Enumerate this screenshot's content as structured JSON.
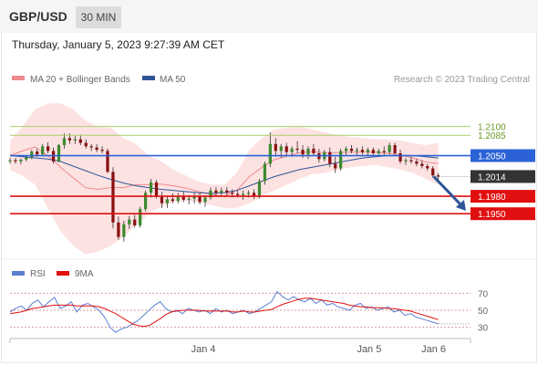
{
  "header": {
    "symbol": "GBP/USD",
    "timeframe": "30 MIN",
    "timestamp": "Thursday, January 5, 2023 9:27:39 AM CET"
  },
  "chart_data": {
    "type": "candlestick",
    "legend": [
      {
        "label": "MA 20 + Bollinger Bands",
        "color": "#f08a8a"
      },
      {
        "label": "MA 50",
        "color": "#2f5597"
      }
    ],
    "copyright": "Research © 2023 Trading Central",
    "y_range": [
      1.1875,
      1.2145
    ],
    "x_range": [
      0,
      100
    ],
    "x_ticks": [
      {
        "label": "Jan 4",
        "x": 42
      },
      {
        "label": "Jan 5",
        "x": 78
      },
      {
        "label": "Jan 6",
        "x": 92
      }
    ],
    "levels": [
      {
        "value": 1.21,
        "label": "1.2100",
        "type": "resistance-line",
        "color": "#a9cf6b"
      },
      {
        "value": 1.2085,
        "label": "1.2085",
        "type": "resistance-line",
        "color": "#a9cf6b"
      },
      {
        "value": 1.205,
        "label": "1.2050",
        "type": "pivot",
        "color": "#2b63d6"
      },
      {
        "value": 1.198,
        "label": "1.1980",
        "type": "support",
        "color": "#e01010"
      },
      {
        "value": 1.195,
        "label": "1.1950",
        "type": "support",
        "color": "#e01010"
      }
    ],
    "last_price": {
      "value": 1.2014,
      "label": "1.2014",
      "color": "#333333"
    },
    "forecast_arrow": {
      "from": [
        92,
        1.2014
      ],
      "to": [
        99,
        1.1955
      ],
      "color": "#2f5597"
    },
    "candles": [
      [
        1.204,
        1.2046,
        1.2036,
        1.2042
      ],
      [
        1.2042,
        1.2046,
        1.2036,
        1.204
      ],
      [
        1.204,
        1.2045,
        1.2035,
        1.2043
      ],
      [
        1.2043,
        1.205,
        1.204,
        1.2047
      ],
      [
        1.2047,
        1.206,
        1.2044,
        1.2057
      ],
      [
        1.2057,
        1.2062,
        1.2048,
        1.2052
      ],
      [
        1.2052,
        1.207,
        1.205,
        1.2066
      ],
      [
        1.2066,
        1.2073,
        1.2054,
        1.2058
      ],
      [
        1.2058,
        1.2064,
        1.2036,
        1.204
      ],
      [
        1.204,
        1.207,
        1.2038,
        1.2068
      ],
      [
        1.2068,
        1.2088,
        1.2062,
        1.208
      ],
      [
        1.208,
        1.2088,
        1.207,
        1.2076
      ],
      [
        1.2076,
        1.2084,
        1.207,
        1.2078
      ],
      [
        1.2078,
        1.2086,
        1.2068,
        1.2072
      ],
      [
        1.2072,
        1.2078,
        1.2062,
        1.2066
      ],
      [
        1.2066,
        1.207,
        1.2058,
        1.2064
      ],
      [
        1.2064,
        1.207,
        1.2056,
        1.206
      ],
      [
        1.206,
        1.2066,
        1.2054,
        1.2058
      ],
      [
        1.2058,
        1.2062,
        1.202,
        1.2022
      ],
      [
        1.2022,
        1.203,
        1.1925,
        1.1935
      ],
      [
        1.1935,
        1.1945,
        1.1905,
        1.191
      ],
      [
        1.191,
        1.1938,
        1.1902,
        1.1932
      ],
      [
        1.1932,
        1.1946,
        1.1924,
        1.194
      ],
      [
        1.194,
        1.1948,
        1.1926,
        1.193
      ],
      [
        1.193,
        1.1962,
        1.1926,
        1.1958
      ],
      [
        1.1958,
        1.199,
        1.1954,
        1.1986
      ],
      [
        1.1986,
        1.201,
        1.1978,
        1.2004
      ],
      [
        1.2004,
        1.2008,
        1.1976,
        1.198
      ],
      [
        1.198,
        1.1988,
        1.196,
        1.1968
      ],
      [
        1.1968,
        1.198,
        1.196,
        1.1975
      ],
      [
        1.1975,
        1.1985,
        1.1968,
        1.1972
      ],
      [
        1.1972,
        1.1986,
        1.1968,
        1.198
      ],
      [
        1.198,
        1.1988,
        1.197,
        1.1974
      ],
      [
        1.1974,
        1.1982,
        1.1966,
        1.1976
      ],
      [
        1.1976,
        1.1986,
        1.1968,
        1.198
      ],
      [
        1.198,
        1.1986,
        1.1966,
        1.197
      ],
      [
        1.197,
        1.1982,
        1.1962,
        1.1978
      ],
      [
        1.1978,
        1.1995,
        1.1974,
        1.199
      ],
      [
        1.199,
        1.1996,
        1.198,
        1.1986
      ],
      [
        1.1986,
        1.1995,
        1.198,
        1.199
      ],
      [
        1.199,
        1.1996,
        1.1982,
        1.1986
      ],
      [
        1.1986,
        1.1992,
        1.1978,
        1.1984
      ],
      [
        1.1984,
        1.199,
        1.1978,
        1.1982
      ],
      [
        1.1982,
        1.199,
        1.1974,
        1.1984
      ],
      [
        1.1984,
        1.199,
        1.1978,
        1.1986
      ],
      [
        1.1986,
        1.1992,
        1.1975,
        1.198
      ],
      [
        1.198,
        1.201,
        1.1976,
        1.2006
      ],
      [
        1.2006,
        1.204,
        1.2,
        1.2036
      ],
      [
        1.2036,
        1.209,
        1.203,
        1.207
      ],
      [
        1.207,
        1.208,
        1.2048,
        1.2058
      ],
      [
        1.2058,
        1.207,
        1.2046,
        1.2066
      ],
      [
        1.2066,
        1.2072,
        1.205,
        1.2056
      ],
      [
        1.2056,
        1.2066,
        1.2048,
        1.2062
      ],
      [
        1.2062,
        1.2075,
        1.2054,
        1.206
      ],
      [
        1.206,
        1.2068,
        1.2046,
        1.2052
      ],
      [
        1.2052,
        1.2066,
        1.2044,
        1.2062
      ],
      [
        1.2062,
        1.207,
        1.205,
        1.2054
      ],
      [
        1.2054,
        1.2062,
        1.2038,
        1.2044
      ],
      [
        1.2044,
        1.206,
        1.204,
        1.2056
      ],
      [
        1.2056,
        1.2064,
        1.203,
        1.2036
      ],
      [
        1.2036,
        1.2048,
        1.202,
        1.2028
      ],
      [
        1.2028,
        1.2062,
        1.2024,
        1.2058
      ],
      [
        1.2058,
        1.2066,
        1.205,
        1.2062
      ],
      [
        1.2062,
        1.2068,
        1.2054,
        1.2058
      ],
      [
        1.2058,
        1.2064,
        1.205,
        1.206
      ],
      [
        1.206,
        1.2066,
        1.2052,
        1.2056
      ],
      [
        1.2056,
        1.2064,
        1.205,
        1.206
      ],
      [
        1.206,
        1.2064,
        1.205,
        1.2054
      ],
      [
        1.2054,
        1.2062,
        1.2048,
        1.2058
      ],
      [
        1.2058,
        1.2066,
        1.205,
        1.2056
      ],
      [
        1.2056,
        1.2072,
        1.2052,
        1.2068
      ],
      [
        1.2068,
        1.2072,
        1.205,
        1.2054
      ],
      [
        1.2054,
        1.206,
        1.2036,
        1.204
      ],
      [
        1.204,
        1.2046,
        1.2034,
        1.2042
      ],
      [
        1.2042,
        1.2048,
        1.2036,
        1.204
      ],
      [
        1.204,
        1.2044,
        1.2032,
        1.2036
      ],
      [
        1.2036,
        1.2042,
        1.2028,
        1.2032
      ],
      [
        1.2032,
        1.2036,
        1.2024,
        1.2028
      ],
      [
        1.2028,
        1.2032,
        1.2012,
        1.2016
      ],
      [
        1.2016,
        1.202,
        1.2008,
        1.2014
      ]
    ],
    "bb_upper": [
      1.2075,
      1.21,
      1.213,
      1.214,
      1.214,
      1.213,
      1.211,
      1.21,
      1.2098,
      1.208,
      1.207,
      1.205,
      1.204,
      1.2025,
      1.2015,
      1.2005,
      1.2,
      1.2,
      1.202,
      1.206,
      1.208,
      1.2095,
      1.2098,
      1.21,
      1.2095,
      1.209,
      1.2085,
      1.2082,
      1.208,
      1.2078,
      1.2078,
      1.2076,
      1.2072,
      1.2068,
      1.2072
    ],
    "bb_lower": [
      1.2025,
      1.2015,
      1.2,
      1.196,
      1.192,
      1.1895,
      1.188,
      1.1885,
      1.1895,
      1.191,
      1.193,
      1.195,
      1.1962,
      1.197,
      1.1972,
      1.197,
      1.1965,
      1.196,
      1.196,
      1.1968,
      1.198,
      1.199,
      1.2,
      1.201,
      1.2018,
      1.202,
      1.2025,
      1.203,
      1.2032,
      1.2034,
      1.203,
      1.2026,
      1.202,
      1.201,
      1.2
    ],
    "bb_mid": [
      1.205,
      1.2058,
      1.2065,
      1.205,
      1.203,
      1.2012,
      1.1995,
      1.1992,
      1.1995,
      1.1995,
      1.2,
      1.2,
      1.2001,
      1.1998,
      1.1994,
      1.1988,
      1.1983,
      1.198,
      1.199,
      1.2014,
      1.203,
      1.2043,
      1.2049,
      1.2055,
      1.2057,
      1.2055,
      1.2055,
      1.2056,
      1.2056,
      1.2056,
      1.2054,
      1.2051,
      1.2046,
      1.2039,
      1.2036
    ],
    "ma50": [
      1.205,
      1.2048,
      1.2046,
      1.2044,
      1.204,
      1.2032,
      1.2024,
      1.2016,
      1.2009,
      1.2003,
      1.1998,
      1.1995,
      1.1992,
      1.199,
      1.1988,
      1.1986,
      1.1985,
      1.1986,
      1.199,
      1.1998,
      1.2006,
      1.2014,
      1.202,
      1.2026,
      1.203,
      1.2034,
      1.2038,
      1.2042,
      1.2046,
      1.2048,
      1.205,
      1.205,
      1.205,
      1.2048,
      1.2046
    ],
    "rsi_legend": [
      {
        "label": "RSI",
        "color": "#5a7fd0"
      },
      {
        "label": "9MA",
        "color": "#e01010"
      }
    ],
    "rsi_levels": [
      70,
      50,
      30
    ],
    "rsi_range": [
      20,
      80
    ],
    "rsi": [
      48,
      52,
      55,
      50,
      58,
      62,
      54,
      60,
      65,
      52,
      55,
      60,
      48,
      56,
      58,
      54,
      50,
      42,
      30,
      24,
      28,
      30,
      34,
      38,
      44,
      50,
      56,
      60,
      52,
      48,
      50,
      46,
      52,
      50,
      48,
      50,
      46,
      52,
      48,
      50,
      46,
      48,
      50,
      46,
      48,
      52,
      56,
      60,
      72,
      66,
      62,
      66,
      62,
      60,
      64,
      58,
      62,
      56,
      58,
      54,
      52,
      50,
      56,
      58,
      52,
      54,
      50,
      52,
      54,
      48,
      50,
      44,
      46,
      42,
      40,
      38,
      36,
      34
    ],
    "rsi_ma": [
      46,
      47,
      48,
      50,
      52,
      53,
      54,
      55,
      56,
      56,
      56,
      56,
      55,
      55,
      55,
      55,
      54,
      52,
      49,
      46,
      42,
      38,
      34,
      32,
      31,
      32,
      36,
      40,
      45,
      48,
      49,
      50,
      50,
      50,
      50,
      49,
      49,
      49,
      49,
      49,
      48,
      48,
      49,
      48,
      48,
      49,
      50,
      51,
      54,
      57,
      59,
      61,
      63,
      64,
      64,
      63,
      62,
      61,
      60,
      59,
      58,
      56,
      55,
      54,
      54,
      53,
      53,
      53,
      52,
      52,
      51,
      50,
      49,
      47,
      45,
      43,
      41,
      39
    ]
  }
}
